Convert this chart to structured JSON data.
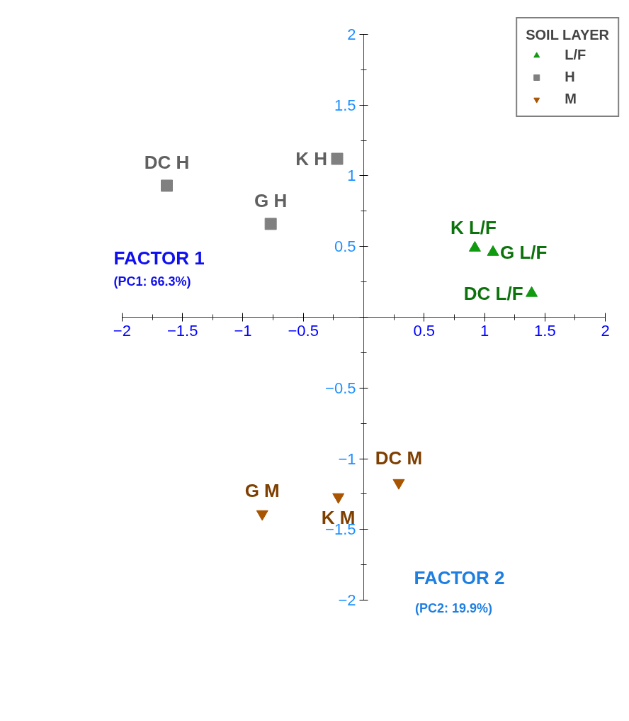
{
  "chart_data": {
    "type": "scatter",
    "xlabel": "FACTOR 1",
    "ylabel": "FACTOR 2",
    "xlim": [
      -2,
      2
    ],
    "ylim": [
      -2,
      2
    ],
    "xticks": [
      -2,
      -1.5,
      -1,
      -0.5,
      {
        "value": 0,
        "label": null
      },
      0.5,
      1,
      1.5,
      2
    ],
    "yticks": [
      -2,
      -1.5,
      -1,
      -0.5,
      {
        "value": 0,
        "label": null
      },
      0.5,
      1,
      1.5,
      2
    ],
    "grid": false,
    "legend": "top right",
    "legend_title": "SOIL LAYER",
    "series": [
      {
        "name": "L/F",
        "color": "#109a10",
        "marker": "triangle",
        "x": [
          0.92,
          1.07,
          1.39
        ],
        "values": [
          0.49,
          0.46,
          0.17
        ]
      },
      {
        "name": "H",
        "color": "#808080",
        "marker": "square",
        "x": [
          -1.63,
          -0.22,
          -0.77
        ],
        "values": [
          0.93,
          1.12,
          0.66
        ]
      },
      {
        "name": "M",
        "color": "#a85400",
        "marker": "triangle_down",
        "x": [
          0.29,
          -0.21,
          -0.84
        ],
        "values": [
          -1.17,
          -1.27,
          -1.39
        ]
      }
    ],
    "annotations": [
      {
        "text": "K L/F",
        "x": 0.92,
        "y": 0.49
      },
      {
        "text": "G L/F",
        "x": 1.07,
        "y": 0.46
      },
      {
        "text": "DC L/F",
        "x": 1.39,
        "y": 0.17
      },
      {
        "text": "DC H",
        "x": -1.63,
        "y": 0.93
      },
      {
        "text": "K H",
        "x": -0.22,
        "y": 1.12
      },
      {
        "text": "G H",
        "x": -0.77,
        "y": 0.66
      },
      {
        "text": "DC M",
        "x": 0.29,
        "y": -1.17
      },
      {
        "text": "K M",
        "x": -0.21,
        "y": -1.27
      },
      {
        "text": "G M",
        "x": -0.84,
        "y": -1.39
      },
      "(PC1: 66.3%)",
      "(PC2: 19.9%)"
    ]
  }
}
